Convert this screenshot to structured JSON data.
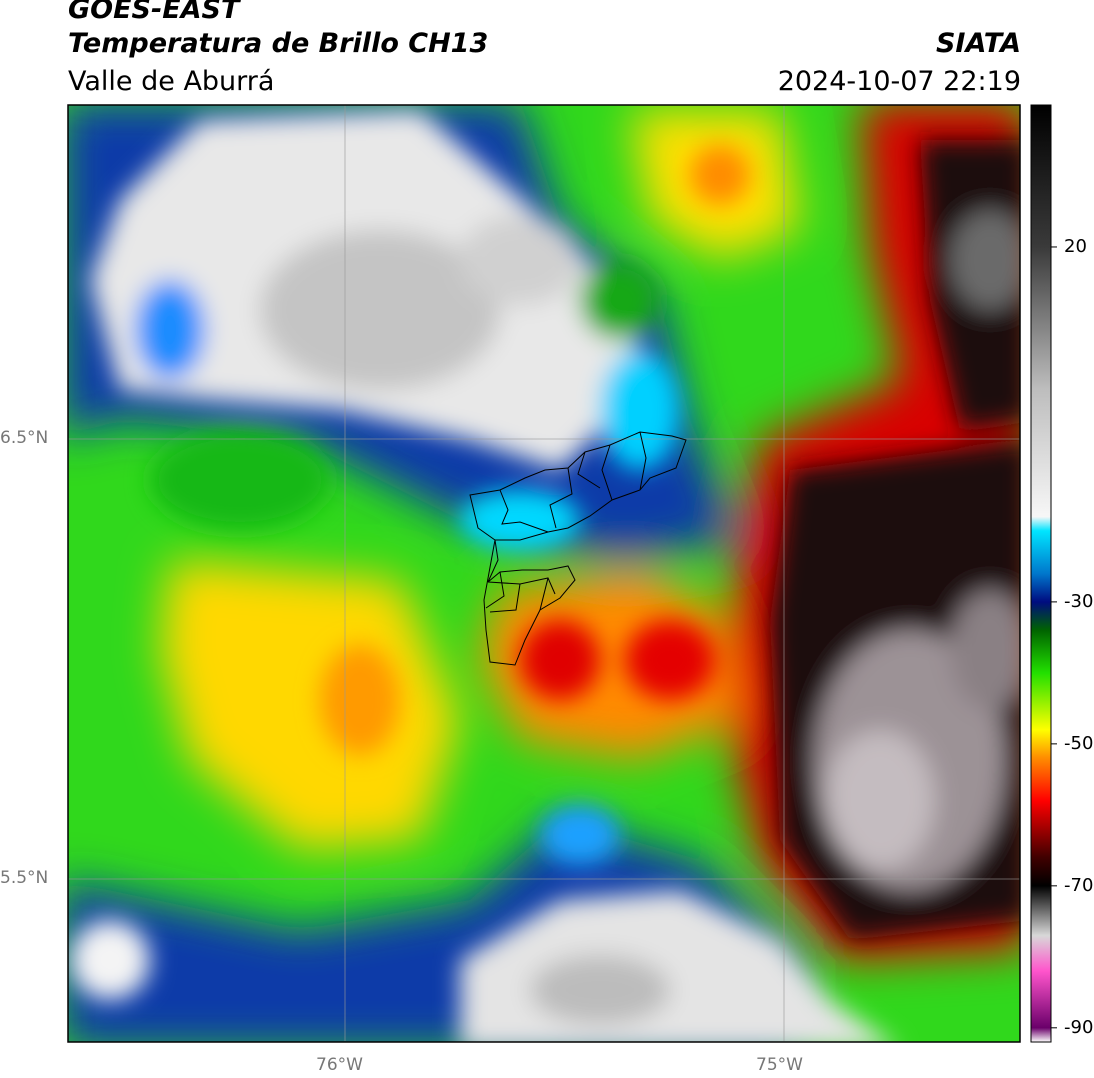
{
  "header": {
    "satellite": "GOES-EAST",
    "product": "Temperatura de Brillo CH13",
    "region": "Valle de Aburrá",
    "organization": "SIATA",
    "timestamp": "2024-10-07 22:19"
  },
  "map": {
    "lat_labels": [
      "6.5°N",
      "5.5°N"
    ],
    "lon_labels": [
      "76°W",
      "75°W"
    ],
    "boundary_color": "#000000",
    "grid_color": "#999999"
  },
  "colorbar": {
    "tick_labels": [
      "20",
      "-30",
      "-50",
      "-70",
      "-90"
    ],
    "tick_values": [
      20,
      -30,
      -50,
      -70,
      -90
    ],
    "range": [
      -92,
      40
    ],
    "stops": [
      {
        "v": 40,
        "c": "#000000"
      },
      {
        "v": 20,
        "c": "#3a3a3a"
      },
      {
        "v": 0,
        "c": "#bdbdbd"
      },
      {
        "v": -18,
        "c": "#f7f7f7"
      },
      {
        "v": -20,
        "c": "#00e5ff"
      },
      {
        "v": -26,
        "c": "#0077cc"
      },
      {
        "v": -30,
        "c": "#000c80"
      },
      {
        "v": -34,
        "c": "#006400"
      },
      {
        "v": -40,
        "c": "#22e000"
      },
      {
        "v": -48,
        "c": "#ffff00"
      },
      {
        "v": -52,
        "c": "#ff8c00"
      },
      {
        "v": -58,
        "c": "#ff0000"
      },
      {
        "v": -66,
        "c": "#400000"
      },
      {
        "v": -70,
        "c": "#000000"
      },
      {
        "v": -77,
        "c": "#d8d8d8"
      },
      {
        "v": -82,
        "c": "#ff55cc"
      },
      {
        "v": -90,
        "c": "#6a006a"
      },
      {
        "v": -92,
        "c": "#ffffff"
      }
    ]
  }
}
